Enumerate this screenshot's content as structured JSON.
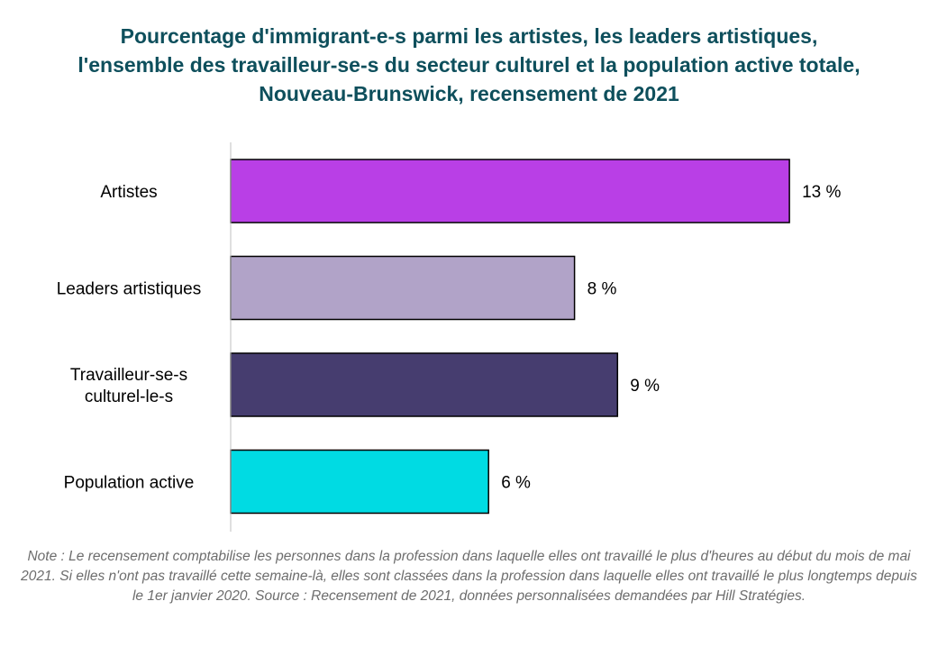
{
  "chart_data": {
    "type": "bar",
    "orientation": "horizontal",
    "title": "Pourcentage d'immigrant-e-s parmi les artistes, les leaders artistiques, l'ensemble des travailleur-se-s du secteur culturel et la population active totale, Nouveau-Brunswick, recensement de 2021",
    "categories": [
      [
        "Artistes"
      ],
      [
        "Leaders artistiques"
      ],
      [
        "Travailleur-se-s",
        "culturel-le-s"
      ],
      [
        "Population active"
      ]
    ],
    "values": [
      13,
      8,
      9,
      6
    ],
    "value_labels": [
      "13 %",
      "8 %",
      "9 %",
      "6 %"
    ],
    "colors": [
      "#b93fe6",
      "#b1a3c8",
      "#463d6f",
      "#00dbe3"
    ],
    "xlim": [
      0,
      15
    ],
    "grid": false,
    "legend": "none",
    "note": "Note : Le recensement comptabilise les personnes dans la profession dans laquelle elles ont travaillé le plus d'heures au début du mois de mai 2021. Si elles n'ont pas travaillé cette semaine-là, elles sont classées dans la profession dans laquelle elles ont travaillé le plus longtemps depuis le 1er janvier 2020. Source : Recensement de 2021, données personnalisées demandées par Hill Stratégies."
  }
}
